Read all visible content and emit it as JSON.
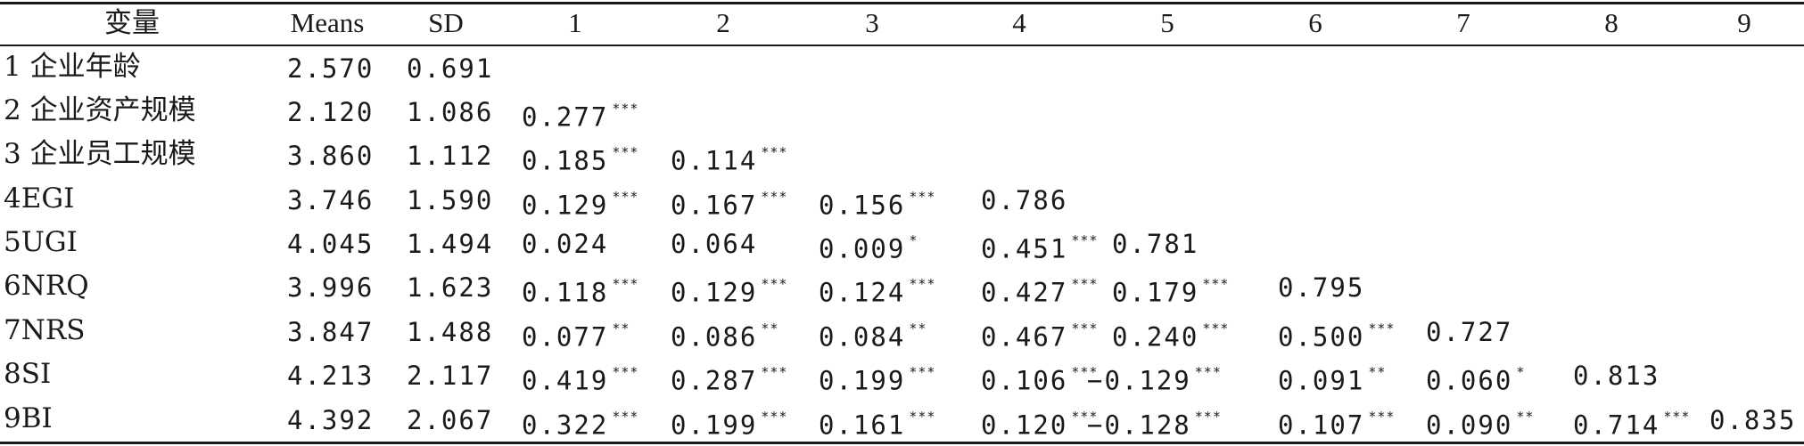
{
  "table": {
    "headers": [
      "变量",
      "Means",
      "SD",
      "1",
      "2",
      "3",
      "4",
      "5",
      "6",
      "7",
      "8",
      "9"
    ],
    "rows": [
      {
        "label": "1 企业年龄",
        "mean": "2.570",
        "sd": "0.691",
        "corr": []
      },
      {
        "label": "2 企业资产规模",
        "mean": "2.120",
        "sd": "1.086",
        "corr": [
          {
            "v": "0.277",
            "s": "***"
          }
        ]
      },
      {
        "label": "3 企业员工规模",
        "mean": "3.860",
        "sd": "1.112",
        "corr": [
          {
            "v": "0.185",
            "s": "***"
          },
          {
            "v": "0.114",
            "s": "***"
          }
        ]
      },
      {
        "label": "4EGI",
        "mean": "3.746",
        "sd": "1.590",
        "corr": [
          {
            "v": "0.129",
            "s": "***"
          },
          {
            "v": "0.167",
            "s": "***"
          },
          {
            "v": "0.156",
            "s": "***"
          },
          {
            "v": "0.786",
            "s": ""
          }
        ]
      },
      {
        "label": "5UGI",
        "mean": "4.045",
        "sd": "1.494",
        "corr": [
          {
            "v": "0.024",
            "s": ""
          },
          {
            "v": "0.064",
            "s": ""
          },
          {
            "v": "0.009",
            "s": "*"
          },
          {
            "v": "0.451",
            "s": "***"
          },
          {
            "v": "0.781",
            "s": ""
          }
        ]
      },
      {
        "label": "6NRQ",
        "mean": "3.996",
        "sd": "1.623",
        "corr": [
          {
            "v": "0.118",
            "s": "***"
          },
          {
            "v": "0.129",
            "s": "***"
          },
          {
            "v": "0.124",
            "s": "***"
          },
          {
            "v": "0.427",
            "s": "***"
          },
          {
            "v": "0.179",
            "s": "***"
          },
          {
            "v": "0.795",
            "s": ""
          }
        ]
      },
      {
        "label": "7NRS",
        "mean": "3.847",
        "sd": "1.488",
        "corr": [
          {
            "v": "0.077",
            "s": "**"
          },
          {
            "v": "0.086",
            "s": "**"
          },
          {
            "v": "0.084",
            "s": "**"
          },
          {
            "v": "0.467",
            "s": "***"
          },
          {
            "v": "0.240",
            "s": "***"
          },
          {
            "v": "0.500",
            "s": "***"
          },
          {
            "v": "0.727",
            "s": ""
          }
        ]
      },
      {
        "label": "8SI",
        "mean": "4.213",
        "sd": "2.117",
        "corr": [
          {
            "v": "0.419",
            "s": "***"
          },
          {
            "v": "0.287",
            "s": "***"
          },
          {
            "v": "0.199",
            "s": "***"
          },
          {
            "v": "0.106",
            "s": "***"
          },
          {
            "v": "−0.129",
            "s": "***"
          },
          {
            "v": "0.091",
            "s": "**"
          },
          {
            "v": "0.060",
            "s": "*"
          },
          {
            "v": "0.813",
            "s": ""
          }
        ]
      },
      {
        "label": "9BI",
        "mean": "4.392",
        "sd": "2.067",
        "corr": [
          {
            "v": "0.322",
            "s": "***"
          },
          {
            "v": "0.199",
            "s": "***"
          },
          {
            "v": "0.161",
            "s": "***"
          },
          {
            "v": "0.120",
            "s": "***"
          },
          {
            "v": "−0.128",
            "s": "***"
          },
          {
            "v": "0.107",
            "s": "***"
          },
          {
            "v": "0.090",
            "s": "**"
          },
          {
            "v": "0.714",
            "s": "***"
          },
          {
            "v": "0.835",
            "s": ""
          }
        ]
      }
    ]
  }
}
